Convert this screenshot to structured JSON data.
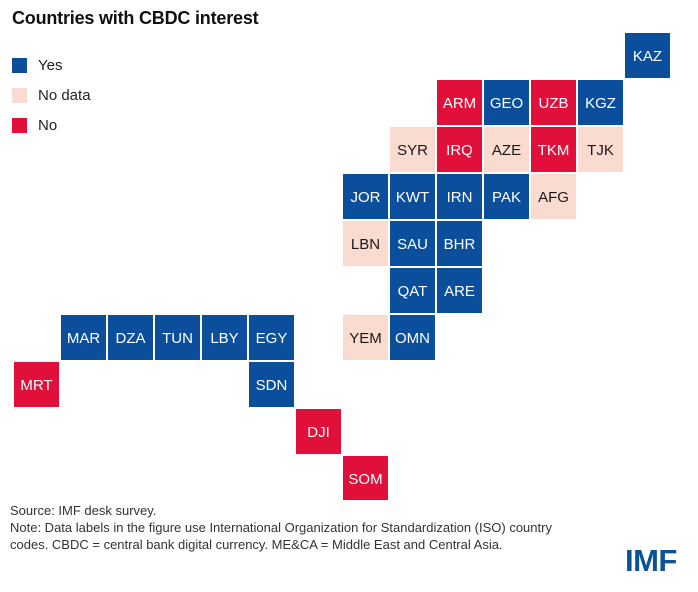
{
  "chart_data": {
    "type": "tile-map",
    "title": "Countries with CBDC interest",
    "legend": [
      {
        "key": "yes",
        "label": "Yes",
        "color": "#0b4f9c"
      },
      {
        "key": "nodata",
        "label": "No data",
        "color": "#fadbd0"
      },
      {
        "key": "no",
        "label": "No",
        "color": "#e0103a"
      }
    ],
    "tiles": [
      {
        "code": "KAZ",
        "status": "yes",
        "col": 13,
        "row": 0
      },
      {
        "code": "ARM",
        "status": "no",
        "col": 9,
        "row": 1
      },
      {
        "code": "GEO",
        "status": "yes",
        "col": 10,
        "row": 1
      },
      {
        "code": "UZB",
        "status": "no",
        "col": 11,
        "row": 1
      },
      {
        "code": "KGZ",
        "status": "yes",
        "col": 12,
        "row": 1
      },
      {
        "code": "SYR",
        "status": "nodata",
        "col": 8,
        "row": 2
      },
      {
        "code": "IRQ",
        "status": "no",
        "col": 9,
        "row": 2
      },
      {
        "code": "AZE",
        "status": "nodata",
        "col": 10,
        "row": 2
      },
      {
        "code": "TKM",
        "status": "no",
        "col": 11,
        "row": 2
      },
      {
        "code": "TJK",
        "status": "nodata",
        "col": 12,
        "row": 2
      },
      {
        "code": "JOR",
        "status": "yes",
        "col": 7,
        "row": 3
      },
      {
        "code": "KWT",
        "status": "yes",
        "col": 8,
        "row": 3
      },
      {
        "code": "IRN",
        "status": "yes",
        "col": 9,
        "row": 3
      },
      {
        "code": "PAK",
        "status": "yes",
        "col": 10,
        "row": 3
      },
      {
        "code": "AFG",
        "status": "nodata",
        "col": 11,
        "row": 3
      },
      {
        "code": "LBN",
        "status": "nodata",
        "col": 7,
        "row": 4
      },
      {
        "code": "SAU",
        "status": "yes",
        "col": 8,
        "row": 4
      },
      {
        "code": "BHR",
        "status": "yes",
        "col": 9,
        "row": 4
      },
      {
        "code": "QAT",
        "status": "yes",
        "col": 8,
        "row": 5
      },
      {
        "code": "ARE",
        "status": "yes",
        "col": 9,
        "row": 5
      },
      {
        "code": "MAR",
        "status": "yes",
        "col": 1,
        "row": 6
      },
      {
        "code": "DZA",
        "status": "yes",
        "col": 2,
        "row": 6
      },
      {
        "code": "TUN",
        "status": "yes",
        "col": 3,
        "row": 6
      },
      {
        "code": "LBY",
        "status": "yes",
        "col": 4,
        "row": 6
      },
      {
        "code": "EGY",
        "status": "yes",
        "col": 5,
        "row": 6
      },
      {
        "code": "YEM",
        "status": "nodata",
        "col": 7,
        "row": 6
      },
      {
        "code": "OMN",
        "status": "yes",
        "col": 8,
        "row": 6
      },
      {
        "code": "MRT",
        "status": "no",
        "col": 0,
        "row": 7
      },
      {
        "code": "SDN",
        "status": "yes",
        "col": 5,
        "row": 7
      },
      {
        "code": "DJI",
        "status": "no",
        "col": 6,
        "row": 8
      },
      {
        "code": "SOM",
        "status": "no",
        "col": 7,
        "row": 9
      }
    ]
  },
  "footer": {
    "source": "Source: IMF desk survey.",
    "note": "Note: Data labels in the figure use International Organization for Standardization (ISO) country codes. CBDC = central bank digital currency. ME&CA = Middle East and Central Asia."
  },
  "logo": {
    "text": "IMF",
    "color": "#0b5394"
  }
}
